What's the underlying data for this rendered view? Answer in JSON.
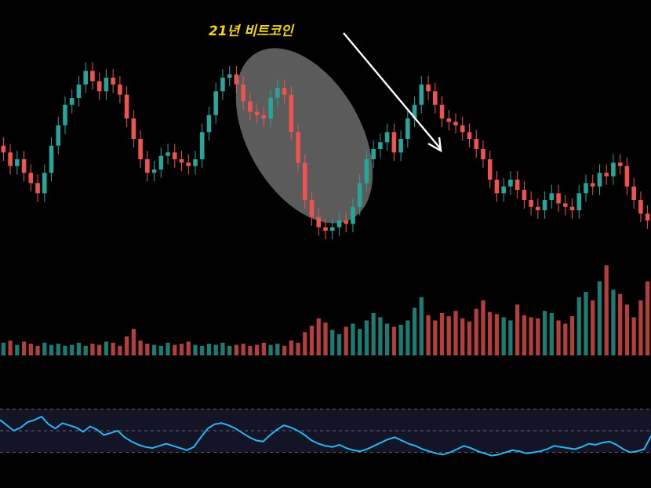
{
  "chart_data": {
    "type": "candlestick",
    "panels": [
      "price",
      "volume",
      "rsi"
    ],
    "annotation": "21년 비트코인",
    "colors": {
      "up": "#26a69a",
      "down": "#ef5350",
      "rsi_line": "#29b6f6",
      "rsi_band": "#141427",
      "highlight": "#6b6b6b",
      "annotation": "#f5d800",
      "arrow": "#ffffff"
    },
    "price_close": [
      64,
      60,
      62,
      58,
      55,
      52,
      58,
      66,
      72,
      78,
      80,
      84,
      88,
      85,
      82,
      86,
      84,
      81,
      74,
      68,
      62,
      58,
      59,
      63,
      64,
      62,
      61,
      60,
      62,
      70,
      75,
      82,
      86,
      87,
      84,
      79,
      76,
      75,
      74,
      80,
      83,
      81,
      70,
      61,
      50,
      45,
      42,
      41,
      42,
      44,
      43,
      48,
      55,
      62,
      65,
      67,
      70,
      64,
      68,
      74,
      78,
      84,
      82,
      78,
      74,
      73,
      72,
      70,
      68,
      65,
      62,
      56,
      52,
      54,
      56,
      53,
      50,
      48,
      47,
      50,
      52,
      49,
      48,
      47,
      52,
      55,
      54,
      58,
      57,
      61,
      60,
      54,
      50,
      46,
      44
    ],
    "volume": [
      12,
      14,
      10,
      13,
      11,
      9,
      12,
      10,
      11,
      9,
      10,
      12,
      9,
      11,
      10,
      13,
      12,
      9,
      18,
      25,
      14,
      11,
      10,
      9,
      12,
      10,
      11,
      13,
      10,
      9,
      11,
      10,
      12,
      9,
      10,
      11,
      9,
      10,
      12,
      10,
      11,
      9,
      14,
      12,
      22,
      28,
      35,
      31,
      24,
      20,
      27,
      30,
      25,
      33,
      40,
      36,
      30,
      27,
      29,
      33,
      45,
      55,
      38,
      33,
      40,
      37,
      42,
      35,
      32,
      44,
      52,
      41,
      39,
      36,
      33,
      48,
      38,
      36,
      35,
      42,
      40,
      33,
      30,
      37,
      55,
      60,
      52,
      70,
      85,
      62,
      58,
      48,
      36,
      52,
      70
    ],
    "rsi": [
      60,
      55,
      50,
      53,
      58,
      60,
      63,
      56,
      52,
      57,
      55,
      53,
      49,
      54,
      51,
      46,
      48,
      50,
      44,
      40,
      37,
      35,
      34,
      36,
      38,
      36,
      34,
      32,
      35,
      44,
      52,
      56,
      57,
      55,
      52,
      48,
      44,
      41,
      40,
      46,
      51,
      55,
      53,
      50,
      46,
      41,
      38,
      36,
      35,
      37,
      34,
      32,
      31,
      33,
      36,
      39,
      42,
      44,
      41,
      38,
      36,
      33,
      31,
      29,
      28,
      30,
      33,
      36,
      34,
      31,
      29,
      27,
      28,
      30,
      32,
      31,
      29,
      30,
      31,
      33,
      36,
      35,
      34,
      33,
      35,
      38,
      37,
      39,
      40,
      37,
      33,
      30,
      31,
      33,
      45
    ]
  }
}
